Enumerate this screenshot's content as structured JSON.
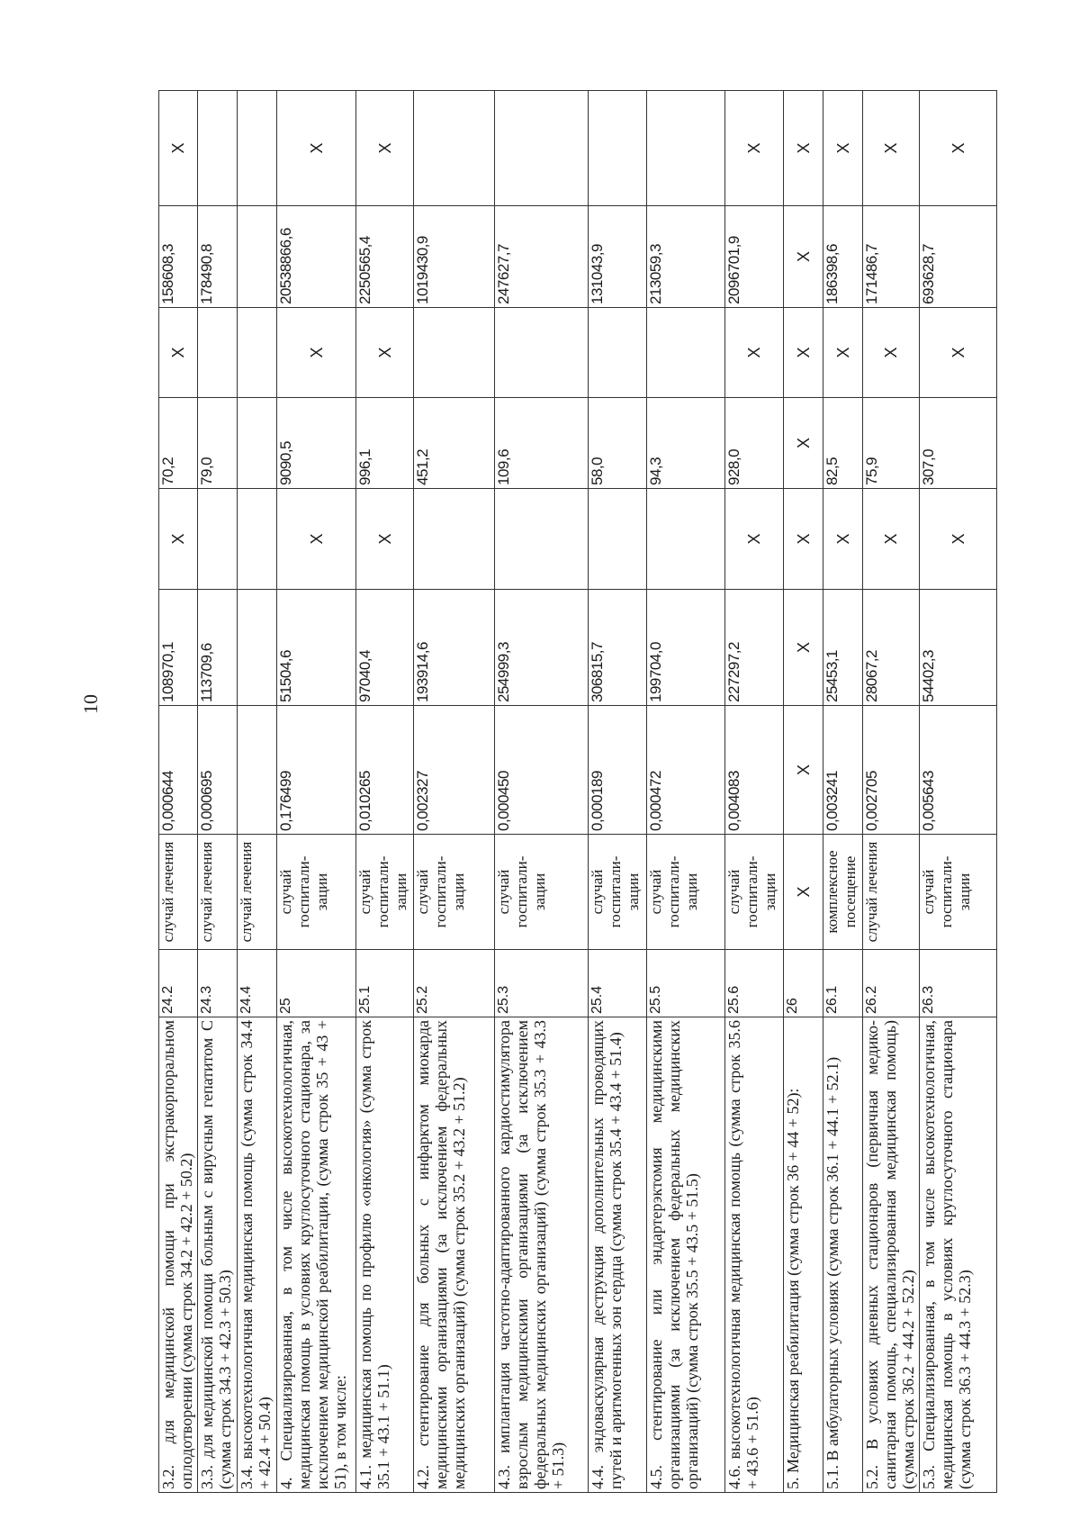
{
  "page_number": "10",
  "table": {
    "rows": [
      {
        "desc": "3.2. для медицинской помощи при экстракорпоральном оплодотворении (сумма строк 34.2 + 42.2 + 50.2)",
        "row": "24.2",
        "unit": "случай лечения",
        "coef": "0,000644",
        "cost": "108970,1",
        "c6": "X",
        "c7": "70,2",
        "c8": "X",
        "total": "158608,3",
        "c10": "X"
      },
      {
        "desc": "3.3. для медицинской помощи больным с вирусным гепатитом С (сумма строк 34.3 + 42.3 + 50.3)",
        "row": "24.3",
        "unit": "случай лечения",
        "coef": "0,000695",
        "cost": "113709,6",
        "c6": "",
        "c7": "79,0",
        "c8": "",
        "total": "178490,8",
        "c10": ""
      },
      {
        "desc": "3.4. высокотехнологичная медицинская помощь (сумма строк 34.4 + 42.4 + 50.4)",
        "row": "24.4",
        "unit": "случай лечения",
        "coef": "",
        "cost": "",
        "c6": "",
        "c7": "",
        "c8": "",
        "total": "",
        "c10": ""
      },
      {
        "desc": "4. Специализированная, в том числе высокотехнологичная, медицинская помощь в условиях круглосуточного стационара, за исключением медицинской реабилитации, (сумма строк 35 + 43 + 51), в том числе:",
        "row": "25",
        "unit": "случай госпитали-зации",
        "coef": "0,176499",
        "cost": "51504,6",
        "c6": "X",
        "c7": "9090,5",
        "c8": "X",
        "total": "20538866,6",
        "c10": "X"
      },
      {
        "desc": "4.1. медицинская помощь по профилю «онкология» (сумма строк 35.1 + 43.1 + 51.1)",
        "row": "25.1",
        "unit": "случай госпитали-зации",
        "coef": "0,010265",
        "cost": "97040,4",
        "c6": "X",
        "c7": "996,1",
        "c8": "X",
        "total": "2250565,4",
        "c10": "X"
      },
      {
        "desc": "4.2. стентирование для больных с инфарктом миокарда медицинскими организациями (за исключением федеральных медицинских организаций) (сумма строк 35.2 + 43.2 + 51.2)",
        "row": "25.2",
        "unit": "случай госпитали-зации",
        "coef": "0,002327",
        "cost": "193914,6",
        "c6": "",
        "c7": "451,2",
        "c8": "",
        "total": "1019430,9",
        "c10": ""
      },
      {
        "desc": "4.3. имплантация частотно-адаптированного кардиостимулятора взрослым медицинскими организациями (за исключением федеральных медицинских организаций) (сумма строк 35.3 + 43.3 + 51.3)",
        "row": "25.3",
        "unit": "случай госпитали-зации",
        "coef": "0,000450",
        "cost": "254999,3",
        "c6": "",
        "c7": "109,6",
        "c8": "",
        "total": "247627,7",
        "c10": ""
      },
      {
        "desc": "4.4. эндоваскулярная деструкция дополнительных проводящих путей и аритмогенных зон сердца (сумма строк 35.4 + 43.4 + 51.4)",
        "row": "25.4",
        "unit": "случай госпитали-зации",
        "coef": "0,000189",
        "cost": "306815,7",
        "c6": "",
        "c7": "58,0",
        "c8": "",
        "total": "131043,9",
        "c10": ""
      },
      {
        "desc": "4.5. стентирование или эндартерэктомия медицинскими организациями (за исключением федеральных медицинских организаций) (сумма строк 35.5 + 43.5 + 51.5)",
        "row": "25.5",
        "unit": "случай госпитали-зации",
        "coef": "0,000472",
        "cost": "199704,0",
        "c6": "",
        "c7": "94,3",
        "c8": "",
        "total": "213059,3",
        "c10": ""
      },
      {
        "desc": "4.6. высокотехнологичная медицинская помощь (сумма строк 35.6 + 43.6 + 51.6)",
        "row": "25.6",
        "unit": "случай госпитали-зации",
        "coef": "0,004083",
        "cost": "227297,2",
        "c6": "X",
        "c7": "928,0",
        "c8": "X",
        "total": "2096701,9",
        "c10": "X"
      },
      {
        "desc": "5. Медицинская реабилитация (сумма строк 36 + 44 + 52):",
        "row": "26",
        "unit": "X",
        "coef": "X",
        "cost": "X",
        "c6": "X",
        "c7": "X",
        "c8": "X",
        "total": "X",
        "c10": "X"
      },
      {
        "desc": "5.1. В амбулаторных условиях (сумма строк 36.1 + 44.1 + 52.1)",
        "row": "26.1",
        "unit": "комплексное посещение",
        "coef": "0,003241",
        "cost": "25453,1",
        "c6": "X",
        "c7": "82,5",
        "c8": "X",
        "total": "186398,6",
        "c10": "X"
      },
      {
        "desc": "5.2. В условиях дневных стационаров (первичная медико-санитарная помощь, специализированная медицинская помощь) (сумма строк 36.2 + 44.2 + 52.2)",
        "row": "26.2",
        "unit": "случай лечения",
        "coef": "0,002705",
        "cost": "28067,2",
        "c6": "X",
        "c7": "75,9",
        "c8": "X",
        "total": "171486,7",
        "c10": "X"
      },
      {
        "desc": "5.3. Специализированная, в том числе высокотехнологичная, медицинская помощь в условиях круглосуточного стационара (сумма строк 36.3 + 44.3 + 52.3)",
        "row": "26.3",
        "unit": "случай госпитали-зации",
        "coef": "0,005643",
        "cost": "54402,3",
        "c6": "X",
        "c7": "307,0",
        "c8": "X",
        "total": "693628,7",
        "c10": "X"
      }
    ]
  }
}
